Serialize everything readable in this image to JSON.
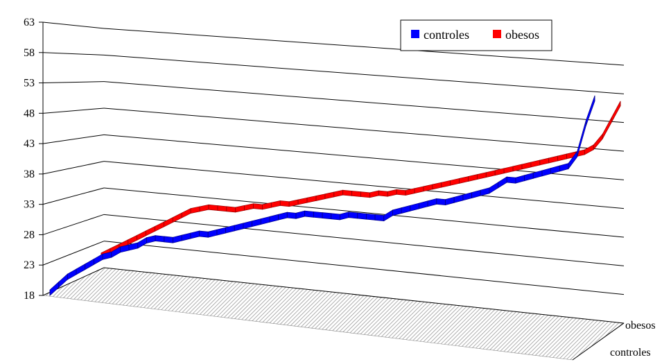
{
  "chart_data": {
    "type": "line",
    "style": "3d-ribbon",
    "title": "",
    "xlabel": "",
    "ylabel": "",
    "ylim": [
      18,
      63
    ],
    "yticks": [
      "18",
      "23",
      "28",
      "33",
      "38",
      "43",
      "48",
      "53",
      "58",
      "63"
    ],
    "depth_categories": [
      "obesos",
      "controles"
    ],
    "grid": true,
    "legend_position": "top-right",
    "series": [
      {
        "name": "controles",
        "color": "#0000FF",
        "values": [
          18,
          19.5,
          21,
          22,
          23,
          24,
          25,
          25.5,
          26.5,
          27,
          27.5,
          28.5,
          29,
          29,
          29,
          29.5,
          30,
          30.5,
          30.5,
          31,
          31.5,
          32,
          32.5,
          33,
          33.5,
          34,
          34.5,
          35,
          35,
          35.5,
          35.5,
          35.5,
          35.5,
          35.5,
          36,
          36,
          36,
          36,
          36,
          37,
          37.5,
          38,
          38.5,
          39,
          39.5,
          39.5,
          40,
          40.5,
          41,
          41.5,
          42,
          43,
          44,
          44,
          44.5,
          45,
          45.5,
          46,
          46.5,
          47,
          49,
          54,
          58
        ]
      },
      {
        "name": "obesos",
        "color": "#FF0000",
        "values": [
          20,
          21,
          22,
          23,
          24,
          25,
          26,
          27,
          28,
          29,
          30,
          30.5,
          31,
          31,
          31,
          31,
          31.5,
          32,
          32,
          32.5,
          33,
          33,
          33.5,
          34,
          34.5,
          35,
          35.5,
          36,
          36,
          36,
          36,
          36.5,
          36.5,
          37,
          37,
          37.5,
          38,
          38.5,
          39,
          39.5,
          40,
          40.5,
          41,
          41.5,
          42,
          42.5,
          43,
          43.5,
          44,
          44.5,
          45,
          45.5,
          46,
          46.5,
          47,
          48,
          50,
          53,
          56
        ]
      }
    ]
  }
}
